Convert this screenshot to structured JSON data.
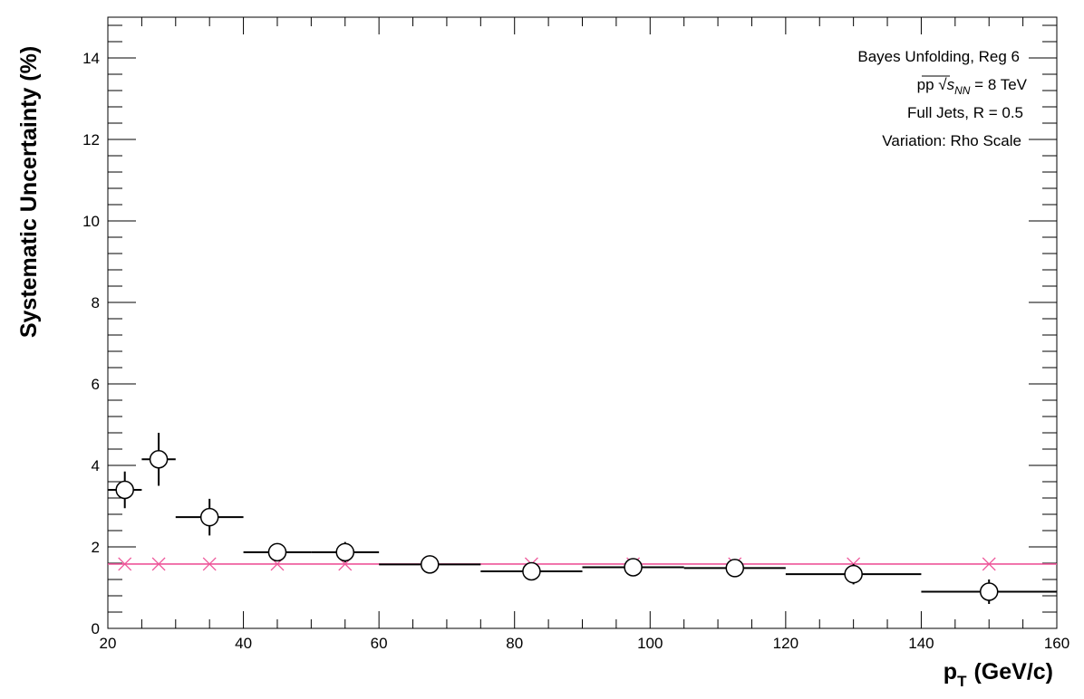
{
  "chart_data": {
    "type": "scatter",
    "title": "",
    "xlabel_main": "p",
    "xlabel_sub": "T",
    "xlabel_unit": "(GeV/c)",
    "ylabel": "Systematic Uncertainty (%)",
    "xlim": [
      20,
      160
    ],
    "ylim": [
      0,
      15
    ],
    "xticks": [
      20,
      40,
      60,
      80,
      100,
      120,
      140,
      160
    ],
    "yticks": [
      0,
      2,
      4,
      6,
      8,
      10,
      12,
      14
    ],
    "grid": false,
    "legend_placement": "top-right",
    "annotations": [
      {
        "text": "Bayes Unfolding, Reg 6"
      },
      {
        "pre": "pp ",
        "sym": "s",
        "sub": "NN",
        "post": " = 8 TeV"
      },
      {
        "text": "Full Jets, R = 0.5"
      },
      {
        "text": "Variation: Rho Scale"
      }
    ],
    "series": [
      {
        "marker": "open-circle",
        "color": "#000000",
        "points": [
          {
            "x": 22.5,
            "y": 3.4,
            "xlo": 20,
            "xhi": 25,
            "yerr": 0.45
          },
          {
            "x": 27.5,
            "y": 4.15,
            "xlo": 25,
            "xhi": 30,
            "yerr": 0.65
          },
          {
            "x": 35,
            "y": 2.73,
            "xlo": 30,
            "xhi": 40,
            "yerr": 0.45
          },
          {
            "x": 45,
            "y": 1.87,
            "xlo": 40,
            "xhi": 50,
            "yerr": 0.12
          },
          {
            "x": 55,
            "y": 1.87,
            "xlo": 50,
            "xhi": 60,
            "yerr": 0.25
          },
          {
            "x": 67.5,
            "y": 1.57,
            "xlo": 60,
            "xhi": 75,
            "yerr": 0.05
          },
          {
            "x": 82.5,
            "y": 1.4,
            "xlo": 75,
            "xhi": 90,
            "yerr": 0.05
          },
          {
            "x": 97.5,
            "y": 1.5,
            "xlo": 90,
            "xhi": 105,
            "yerr": 0.07
          },
          {
            "x": 112.5,
            "y": 1.48,
            "xlo": 105,
            "xhi": 120,
            "yerr": 0.08
          },
          {
            "x": 130,
            "y": 1.33,
            "xlo": 120,
            "xhi": 140,
            "yerr": 0.25
          },
          {
            "x": 150,
            "y": 0.9,
            "xlo": 140,
            "xhi": 160,
            "yerr": 0.3
          }
        ]
      },
      {
        "marker": "x",
        "color": "#ee5599",
        "points": [
          {
            "x": 22.5,
            "y": 1.58
          },
          {
            "x": 27.5,
            "y": 1.58
          },
          {
            "x": 35,
            "y": 1.58
          },
          {
            "x": 45,
            "y": 1.58
          },
          {
            "x": 55,
            "y": 1.58
          },
          {
            "x": 67.5,
            "y": 1.58
          },
          {
            "x": 82.5,
            "y": 1.58
          },
          {
            "x": 97.5,
            "y": 1.58
          },
          {
            "x": 112.5,
            "y": 1.58
          },
          {
            "x": 130,
            "y": 1.58
          },
          {
            "x": 150,
            "y": 1.58
          }
        ]
      },
      {
        "marker": "line",
        "color": "#ee5599",
        "y": 1.58
      }
    ]
  }
}
